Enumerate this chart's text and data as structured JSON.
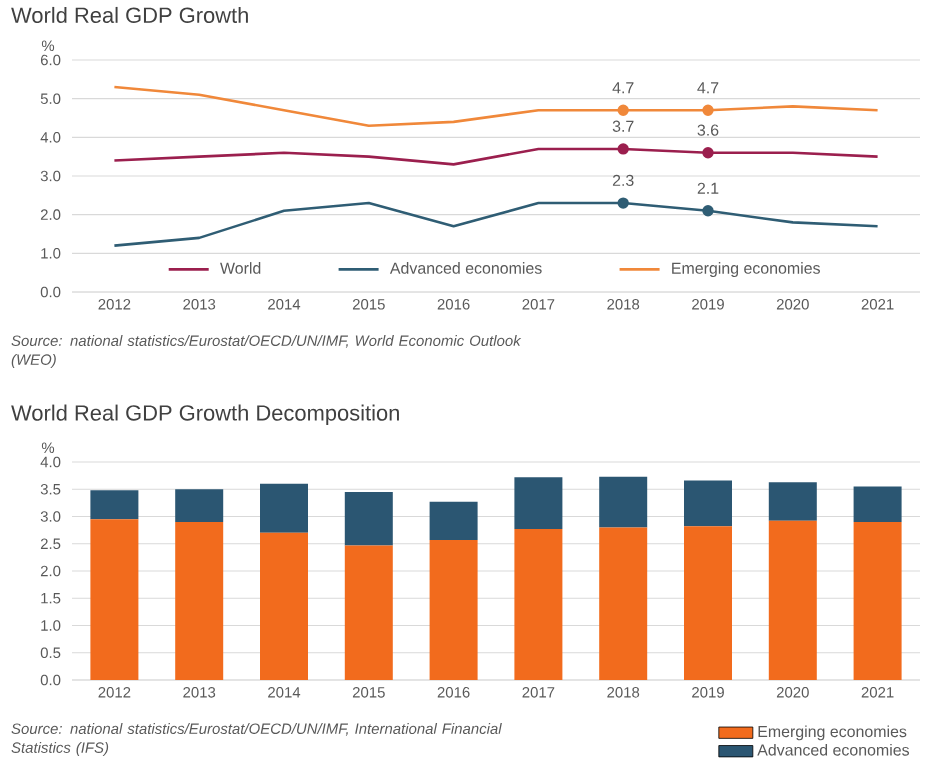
{
  "chart_data": [
    {
      "type": "line",
      "title": "World Real GDP Growth",
      "ylabel": "%",
      "categories": [
        "2012",
        "2013",
        "2014",
        "2015",
        "2016",
        "2017",
        "2018",
        "2019",
        "2020",
        "2021"
      ],
      "series": [
        {
          "name": "World",
          "color": "#9b1f4e",
          "values": [
            3.4,
            3.5,
            3.6,
            3.5,
            3.3,
            3.7,
            3.7,
            3.6,
            3.6,
            3.5
          ],
          "value_labels": [
            null,
            null,
            null,
            null,
            null,
            null,
            "3.7",
            "3.6",
            null,
            null
          ]
        },
        {
          "name": "Advanced economies",
          "color": "#2f5d74",
          "values": [
            1.2,
            1.4,
            2.1,
            2.3,
            1.7,
            2.3,
            2.3,
            2.1,
            1.8,
            1.7
          ],
          "value_labels": [
            null,
            null,
            null,
            null,
            null,
            null,
            "2.3",
            "2.1",
            null,
            null
          ]
        },
        {
          "name": "Emerging economies",
          "color": "#f0883a",
          "values": [
            5.3,
            5.1,
            4.7,
            4.3,
            4.4,
            4.7,
            4.7,
            4.7,
            4.8,
            4.7
          ],
          "value_labels": [
            null,
            null,
            null,
            null,
            null,
            null,
            "4.7",
            "4.7",
            null,
            null
          ]
        }
      ],
      "ylim": [
        0,
        6
      ],
      "yticks": [
        {
          "value": 0,
          "label": "0.0"
        },
        {
          "value": 1,
          "label": "1.0"
        },
        {
          "value": 2,
          "label": "2.0"
        },
        {
          "value": 3,
          "label": "3.0"
        },
        {
          "value": 4,
          "label": "4.0"
        },
        {
          "value": 5,
          "label": "5.0"
        },
        {
          "value": 6,
          "label": "6.0"
        }
      ],
      "grid": "y",
      "legend": "bottom",
      "annotations": [
        "Source: national statistics/Eurostat/OECD/UN/IMF, World Economic Outlook (WEO)"
      ]
    },
    {
      "type": "bar",
      "title": "World Real GDP Growth Decomposition",
      "ylabel": "%",
      "stacked": true,
      "categories": [
        "2012",
        "2013",
        "2014",
        "2015",
        "2016",
        "2017",
        "2018",
        "2019",
        "2020",
        "2021"
      ],
      "series": [
        {
          "name": "Emerging economies",
          "color": "#f26b1d",
          "values": [
            2.95,
            2.9,
            2.7,
            2.47,
            2.57,
            2.77,
            2.8,
            2.82,
            2.92,
            2.9
          ]
        },
        {
          "name": "Advanced economies",
          "color": "#2b5672",
          "values": [
            0.53,
            0.6,
            0.9,
            0.98,
            0.7,
            0.95,
            0.93,
            0.84,
            0.71,
            0.65
          ]
        }
      ],
      "ylim": [
        0,
        4
      ],
      "yticks": [
        {
          "value": 0,
          "label": "0.0"
        },
        {
          "value": 0.5,
          "label": "0.5"
        },
        {
          "value": 1,
          "label": "1.0"
        },
        {
          "value": 1.5,
          "label": "1.5"
        },
        {
          "value": 2,
          "label": "2.0"
        },
        {
          "value": 2.5,
          "label": "2.5"
        },
        {
          "value": 3,
          "label": "3.0"
        },
        {
          "value": 3.5,
          "label": "3.5"
        },
        {
          "value": 4,
          "label": "4.0"
        }
      ],
      "grid": "y",
      "legend": "bottom right",
      "annotations": [
        "Source: national statistics/Eurostat/OECD/UN/IMF, International Financial Statistics (IFS)"
      ]
    }
  ]
}
